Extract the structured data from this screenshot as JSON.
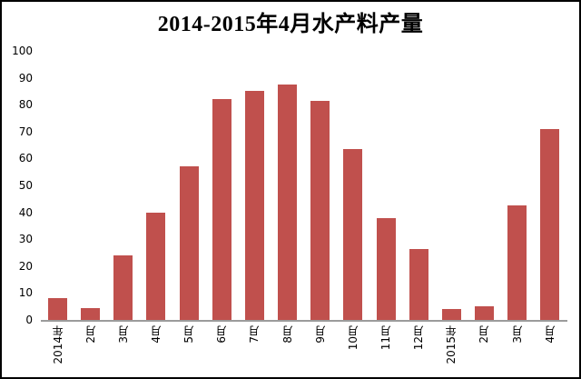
{
  "window": {
    "background_color": "#ffffff",
    "border_color": "#000000"
  },
  "chart_data": {
    "type": "bar",
    "title": "2014-2015年4月水产料产量",
    "categories": [
      "2014年",
      "2月",
      "3月",
      "4月",
      "5月",
      "6月",
      "7月",
      "8月",
      "9月",
      "10月",
      "11月",
      "12月",
      "2015年",
      "2月",
      "3月",
      "4月"
    ],
    "values": [
      8,
      4.5,
      24,
      40,
      57,
      82,
      85,
      87.5,
      81.5,
      63.5,
      38,
      26.5,
      4,
      5,
      42.5,
      71
    ],
    "xlabel": "",
    "ylabel": "",
    "y_ticks": [
      0,
      10,
      20,
      30,
      40,
      50,
      60,
      70,
      80,
      90,
      100
    ],
    "ylim": [
      0,
      100
    ],
    "grid": false,
    "legend": false,
    "x_labels_rotation_deg": 90,
    "bar_color": "#C0504D",
    "axis_line_color": "#9b9b9b",
    "text_color": "#000000"
  }
}
